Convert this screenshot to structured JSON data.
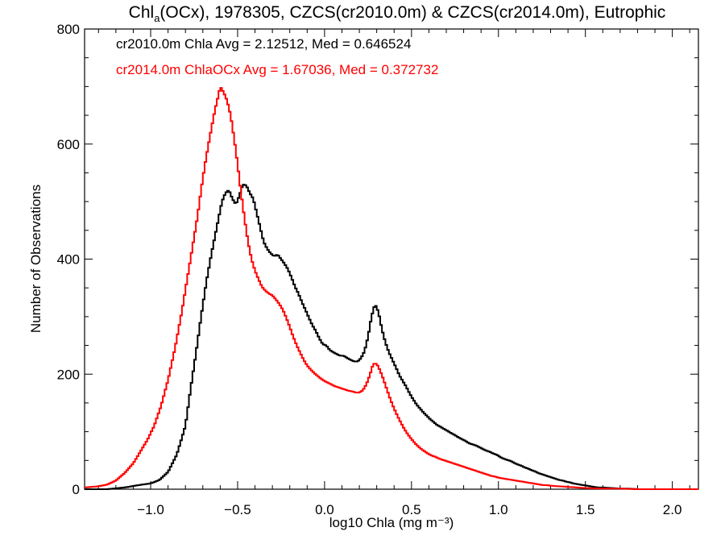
{
  "chart_data": {
    "type": "line",
    "title": {
      "prefix": "Chl",
      "subscript": "a",
      "suffix": "(OCx), 1978305, CZCS(cr2010.0m) & CZCS(cr2014.0m), Eutrophic"
    },
    "xlabel": "log10 Chla (mg m⁻³)",
    "ylabel": "Number of Observations",
    "xlim": [
      -1.38,
      2.15
    ],
    "ylim": [
      0,
      800
    ],
    "x_ticks": [
      -1.0,
      -0.5,
      0.0,
      0.5,
      1.0,
      1.5,
      2.0
    ],
    "x_tick_labels": [
      "−1.0",
      "−0.5",
      "0.0",
      "0.5",
      "1.0",
      "1.5",
      "2.0"
    ],
    "y_ticks": [
      0,
      200,
      400,
      600,
      800
    ],
    "y_tick_labels": [
      "0",
      "200",
      "400",
      "600",
      "800"
    ],
    "step": true,
    "series": [
      {
        "name": "cr2010.0m",
        "legend": "cr2010.0m Chla Avg = 2.12512, Med = 0.646524",
        "color": "#000000",
        "points": [
          [
            -1.38,
            0
          ],
          [
            -1.25,
            0
          ],
          [
            -1.15,
            3
          ],
          [
            -1.05,
            8
          ],
          [
            -1.0,
            10
          ],
          [
            -0.95,
            16
          ],
          [
            -0.9,
            30
          ],
          [
            -0.85,
            60
          ],
          [
            -0.8,
            110
          ],
          [
            -0.77,
            175
          ],
          [
            -0.74,
            235
          ],
          [
            -0.71,
            300
          ],
          [
            -0.68,
            360
          ],
          [
            -0.65,
            410
          ],
          [
            -0.63,
            440
          ],
          [
            -0.61,
            470
          ],
          [
            -0.59,
            500
          ],
          [
            -0.57,
            515
          ],
          [
            -0.55,
            520
          ],
          [
            -0.53,
            505
          ],
          [
            -0.51,
            495
          ],
          [
            -0.49,
            510
          ],
          [
            -0.47,
            530
          ],
          [
            -0.45,
            528
          ],
          [
            -0.43,
            515
          ],
          [
            -0.41,
            505
          ],
          [
            -0.39,
            480
          ],
          [
            -0.37,
            455
          ],
          [
            -0.35,
            430
          ],
          [
            -0.33,
            418
          ],
          [
            -0.31,
            410
          ],
          [
            -0.29,
            405
          ],
          [
            -0.27,
            408
          ],
          [
            -0.25,
            400
          ],
          [
            -0.23,
            392
          ],
          [
            -0.21,
            382
          ],
          [
            -0.19,
            368
          ],
          [
            -0.17,
            352
          ],
          [
            -0.15,
            340
          ],
          [
            -0.13,
            325
          ],
          [
            -0.11,
            312
          ],
          [
            -0.09,
            298
          ],
          [
            -0.07,
            285
          ],
          [
            -0.05,
            275
          ],
          [
            -0.03,
            262
          ],
          [
            -0.01,
            252
          ],
          [
            0.01,
            250
          ],
          [
            0.03,
            242
          ],
          [
            0.05,
            238
          ],
          [
            0.07,
            235
          ],
          [
            0.09,
            232
          ],
          [
            0.11,
            232
          ],
          [
            0.13,
            228
          ],
          [
            0.15,
            225
          ],
          [
            0.17,
            222
          ],
          [
            0.19,
            222
          ],
          [
            0.21,
            228
          ],
          [
            0.23,
            240
          ],
          [
            0.25,
            265
          ],
          [
            0.27,
            300
          ],
          [
            0.29,
            322
          ],
          [
            0.31,
            308
          ],
          [
            0.33,
            278
          ],
          [
            0.35,
            255
          ],
          [
            0.37,
            238
          ],
          [
            0.39,
            225
          ],
          [
            0.41,
            212
          ],
          [
            0.43,
            198
          ],
          [
            0.45,
            188
          ],
          [
            0.47,
            178
          ],
          [
            0.49,
            166
          ],
          [
            0.51,
            156
          ],
          [
            0.53,
            147
          ],
          [
            0.55,
            140
          ],
          [
            0.57,
            133
          ],
          [
            0.59,
            127
          ],
          [
            0.61,
            121
          ],
          [
            0.63,
            116
          ],
          [
            0.65,
            111
          ],
          [
            0.67,
            108
          ],
          [
            0.69,
            104
          ],
          [
            0.71,
            101
          ],
          [
            0.73,
            97
          ],
          [
            0.75,
            94
          ],
          [
            0.77,
            90
          ],
          [
            0.79,
            87
          ],
          [
            0.81,
            84
          ],
          [
            0.83,
            80
          ],
          [
            0.85,
            78
          ],
          [
            0.87,
            76
          ],
          [
            0.89,
            73
          ],
          [
            0.91,
            70
          ],
          [
            0.93,
            67
          ],
          [
            0.95,
            65
          ],
          [
            0.97,
            62
          ],
          [
            0.99,
            60
          ],
          [
            1.01,
            56
          ],
          [
            1.03,
            53
          ],
          [
            1.05,
            51
          ],
          [
            1.07,
            49
          ],
          [
            1.09,
            46
          ],
          [
            1.11,
            43
          ],
          [
            1.13,
            41
          ],
          [
            1.15,
            38
          ],
          [
            1.17,
            36
          ],
          [
            1.19,
            33
          ],
          [
            1.21,
            31
          ],
          [
            1.23,
            28
          ],
          [
            1.25,
            26
          ],
          [
            1.27,
            24
          ],
          [
            1.29,
            22
          ],
          [
            1.31,
            20
          ],
          [
            1.33,
            18
          ],
          [
            1.35,
            16
          ],
          [
            1.37,
            15
          ],
          [
            1.39,
            13
          ],
          [
            1.41,
            12
          ],
          [
            1.43,
            10
          ],
          [
            1.45,
            9
          ],
          [
            1.47,
            8
          ],
          [
            1.49,
            7
          ],
          [
            1.51,
            6
          ],
          [
            1.53,
            5
          ],
          [
            1.55,
            4
          ],
          [
            1.57,
            3
          ],
          [
            1.6,
            3
          ],
          [
            1.65,
            2
          ],
          [
            1.7,
            1
          ],
          [
            1.75,
            1
          ],
          [
            1.8,
            0
          ],
          [
            2.15,
            0
          ]
        ]
      },
      {
        "name": "cr2014.0m",
        "legend": "cr2014.0m ChlaOCx Avg = 1.67036, Med = 0.372732",
        "color": "#ff0000",
        "points": [
          [
            -1.38,
            3
          ],
          [
            -1.3,
            5
          ],
          [
            -1.25,
            8
          ],
          [
            -1.2,
            15
          ],
          [
            -1.15,
            28
          ],
          [
            -1.1,
            45
          ],
          [
            -1.06,
            65
          ],
          [
            -1.02,
            85
          ],
          [
            -0.98,
            110
          ],
          [
            -0.94,
            145
          ],
          [
            -0.9,
            190
          ],
          [
            -0.86,
            245
          ],
          [
            -0.82,
            310
          ],
          [
            -0.79,
            365
          ],
          [
            -0.76,
            420
          ],
          [
            -0.73,
            475
          ],
          [
            -0.71,
            520
          ],
          [
            -0.69,
            560
          ],
          [
            -0.67,
            595
          ],
          [
            -0.65,
            628
          ],
          [
            -0.63,
            660
          ],
          [
            -0.61,
            685
          ],
          [
            -0.6,
            700
          ],
          [
            -0.58,
            690
          ],
          [
            -0.56,
            675
          ],
          [
            -0.54,
            650
          ],
          [
            -0.52,
            610
          ],
          [
            -0.5,
            565
          ],
          [
            -0.48,
            515
          ],
          [
            -0.46,
            470
          ],
          [
            -0.44,
            430
          ],
          [
            -0.42,
            400
          ],
          [
            -0.4,
            380
          ],
          [
            -0.38,
            365
          ],
          [
            -0.36,
            352
          ],
          [
            -0.34,
            345
          ],
          [
            -0.32,
            340
          ],
          [
            -0.3,
            337
          ],
          [
            -0.28,
            330
          ],
          [
            -0.26,
            322
          ],
          [
            -0.24,
            312
          ],
          [
            -0.22,
            298
          ],
          [
            -0.2,
            282
          ],
          [
            -0.18,
            265
          ],
          [
            -0.16,
            250
          ],
          [
            -0.14,
            237
          ],
          [
            -0.12,
            225
          ],
          [
            -0.1,
            215
          ],
          [
            -0.08,
            208
          ],
          [
            -0.06,
            202
          ],
          [
            -0.04,
            197
          ],
          [
            -0.02,
            192
          ],
          [
            0.0,
            188
          ],
          [
            0.02,
            185
          ],
          [
            0.04,
            182
          ],
          [
            0.06,
            179
          ],
          [
            0.08,
            177
          ],
          [
            0.1,
            175
          ],
          [
            0.12,
            173
          ],
          [
            0.14,
            171
          ],
          [
            0.16,
            170
          ],
          [
            0.18,
            168
          ],
          [
            0.2,
            168
          ],
          [
            0.22,
            172
          ],
          [
            0.24,
            182
          ],
          [
            0.26,
            198
          ],
          [
            0.28,
            218
          ],
          [
            0.3,
            218
          ],
          [
            0.32,
            206
          ],
          [
            0.34,
            190
          ],
          [
            0.36,
            172
          ],
          [
            0.38,
            155
          ],
          [
            0.4,
            140
          ],
          [
            0.42,
            127
          ],
          [
            0.44,
            115
          ],
          [
            0.46,
            104
          ],
          [
            0.48,
            95
          ],
          [
            0.5,
            87
          ],
          [
            0.52,
            80
          ],
          [
            0.54,
            74
          ],
          [
            0.56,
            69
          ],
          [
            0.58,
            65
          ],
          [
            0.6,
            61
          ],
          [
            0.62,
            58
          ],
          [
            0.64,
            56
          ],
          [
            0.66,
            53
          ],
          [
            0.68,
            51
          ],
          [
            0.7,
            49
          ],
          [
            0.72,
            47
          ],
          [
            0.74,
            45
          ],
          [
            0.76,
            43
          ],
          [
            0.78,
            41
          ],
          [
            0.8,
            39
          ],
          [
            0.82,
            37
          ],
          [
            0.84,
            35
          ],
          [
            0.86,
            33
          ],
          [
            0.88,
            31
          ],
          [
            0.9,
            29
          ],
          [
            0.92,
            27
          ],
          [
            0.94,
            25
          ],
          [
            0.96,
            23
          ],
          [
            0.98,
            22
          ],
          [
            1.0,
            20
          ],
          [
            1.02,
            19
          ],
          [
            1.04,
            18
          ],
          [
            1.06,
            17
          ],
          [
            1.08,
            16
          ],
          [
            1.1,
            15
          ],
          [
            1.12,
            14
          ],
          [
            1.14,
            13
          ],
          [
            1.16,
            12
          ],
          [
            1.18,
            11
          ],
          [
            1.2,
            10
          ],
          [
            1.22,
            9
          ],
          [
            1.24,
            8
          ],
          [
            1.26,
            7
          ],
          [
            1.28,
            7
          ],
          [
            1.3,
            6
          ],
          [
            1.35,
            5
          ],
          [
            1.4,
            4
          ],
          [
            1.45,
            3
          ],
          [
            1.5,
            2
          ],
          [
            1.6,
            1
          ],
          [
            1.7,
            1
          ],
          [
            1.8,
            0
          ],
          [
            2.15,
            0
          ]
        ]
      }
    ]
  }
}
